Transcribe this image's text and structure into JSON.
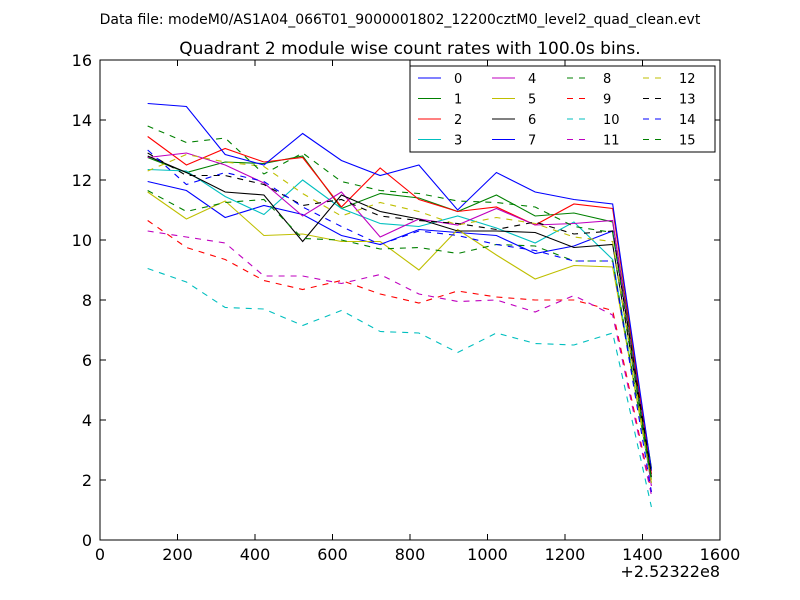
{
  "figure": {
    "suptitle": "Data file: modeM0/AS1A04_066T01_9000001802_12200cztM0_level2_quad_clean.evt"
  },
  "chart_data": {
    "type": "line",
    "title": "Quadrant 2 module wise count rates with 100.0s bins.",
    "xlabel": "",
    "ylabel": "",
    "x_offset_label": "+2.52322e8",
    "xlim": [
      0,
      1600
    ],
    "ylim": [
      0,
      16
    ],
    "xticks": [
      0,
      200,
      400,
      600,
      800,
      1000,
      1200,
      1400,
      1600
    ],
    "yticks": [
      0,
      2,
      4,
      6,
      8,
      10,
      12,
      14,
      16
    ],
    "grid": false,
    "legend_position": "top-right",
    "legend_columns": 4,
    "x": [
      123,
      223,
      323,
      423,
      523,
      623,
      723,
      823,
      923,
      1023,
      1123,
      1223,
      1323,
      1423
    ],
    "series": [
      {
        "name": "0",
        "color": "#0000ff",
        "dash": "solid",
        "values": [
          11.95,
          11.65,
          10.75,
          11.15,
          10.85,
          10.15,
          9.85,
          10.35,
          10.25,
          10.15,
          9.55,
          9.8,
          10.3,
          2.3
        ]
      },
      {
        "name": "1",
        "color": "#008000",
        "dash": "solid",
        "values": [
          12.75,
          12.25,
          12.6,
          12.55,
          12.8,
          11.05,
          11.55,
          11.4,
          10.95,
          11.5,
          10.8,
          10.9,
          10.6,
          2.4
        ]
      },
      {
        "name": "2",
        "color": "#ff0000",
        "dash": "solid",
        "values": [
          13.45,
          12.5,
          13.05,
          12.6,
          12.75,
          11.1,
          12.4,
          11.35,
          10.95,
          11.1,
          10.5,
          11.2,
          11.05,
          2.2
        ]
      },
      {
        "name": "3",
        "color": "#00bfbf",
        "dash": "solid",
        "values": [
          12.35,
          12.3,
          11.45,
          10.85,
          12.0,
          11.05,
          10.55,
          10.45,
          10.8,
          10.4,
          9.9,
          10.6,
          9.35,
          1.9
        ]
      },
      {
        "name": "4",
        "color": "#bf00bf",
        "dash": "solid",
        "values": [
          12.75,
          12.9,
          12.5,
          11.9,
          10.8,
          11.6,
          10.1,
          10.7,
          10.5,
          11.05,
          10.5,
          10.55,
          10.65,
          1.8
        ]
      },
      {
        "name": "5",
        "color": "#bfbf00",
        "dash": "solid",
        "values": [
          11.6,
          10.7,
          11.3,
          10.15,
          10.2,
          9.95,
          9.95,
          9.0,
          10.35,
          9.5,
          8.7,
          9.15,
          9.1,
          2.0
        ]
      },
      {
        "name": "6",
        "color": "#000000",
        "dash": "solid",
        "values": [
          12.8,
          12.25,
          11.6,
          11.5,
          9.95,
          11.5,
          10.95,
          10.7,
          10.3,
          10.3,
          10.25,
          9.75,
          9.85,
          2.1
        ]
      },
      {
        "name": "7",
        "color": "#0000ff",
        "dash": "solid",
        "values": [
          14.55,
          14.45,
          12.85,
          12.5,
          13.55,
          12.65,
          12.15,
          12.5,
          11.0,
          12.25,
          11.6,
          11.35,
          11.2,
          2.35
        ]
      },
      {
        "name": "8",
        "color": "#008000",
        "dash": "dashed",
        "values": [
          11.65,
          10.95,
          11.25,
          11.35,
          10.05,
          10.0,
          9.7,
          9.75,
          9.55,
          9.85,
          9.8,
          9.3,
          9.3,
          2.0
        ]
      },
      {
        "name": "9",
        "color": "#ff0000",
        "dash": "dashed",
        "values": [
          10.65,
          9.75,
          9.35,
          8.65,
          8.35,
          8.65,
          8.2,
          7.9,
          8.3,
          8.1,
          8.0,
          8.0,
          7.65,
          1.6
        ]
      },
      {
        "name": "10",
        "color": "#00bfbf",
        "dash": "dashed",
        "values": [
          9.05,
          8.6,
          7.75,
          7.7,
          7.15,
          7.65,
          6.95,
          6.9,
          6.25,
          6.9,
          6.55,
          6.5,
          6.9,
          1.1
        ]
      },
      {
        "name": "11",
        "color": "#bf00bf",
        "dash": "dashed",
        "values": [
          10.3,
          10.1,
          9.9,
          8.8,
          8.8,
          8.55,
          8.85,
          8.2,
          7.95,
          8.0,
          7.6,
          8.15,
          7.5,
          1.5
        ]
      },
      {
        "name": "12",
        "color": "#bfbf00",
        "dash": "dashed",
        "values": [
          12.3,
          12.85,
          12.6,
          12.45,
          11.55,
          10.8,
          11.25,
          10.95,
          10.5,
          10.75,
          10.55,
          10.1,
          9.95,
          1.9
        ]
      },
      {
        "name": "13",
        "color": "#000000",
        "dash": "dashed",
        "values": [
          12.9,
          12.15,
          12.15,
          11.85,
          11.15,
          11.35,
          10.8,
          10.65,
          10.55,
          10.35,
          10.6,
          10.2,
          10.3,
          2.2
        ]
      },
      {
        "name": "14",
        "color": "#0000ff",
        "dash": "dashed",
        "values": [
          13.0,
          11.85,
          12.25,
          11.95,
          11.1,
          10.45,
          9.85,
          10.3,
          10.15,
          9.85,
          9.65,
          9.3,
          9.3,
          1.6
        ]
      },
      {
        "name": "15",
        "color": "#008000",
        "dash": "dashed",
        "values": [
          13.8,
          13.25,
          13.4,
          12.2,
          12.9,
          11.95,
          11.65,
          11.55,
          11.3,
          11.25,
          11.1,
          10.45,
          10.25,
          2.0
        ]
      }
    ]
  }
}
